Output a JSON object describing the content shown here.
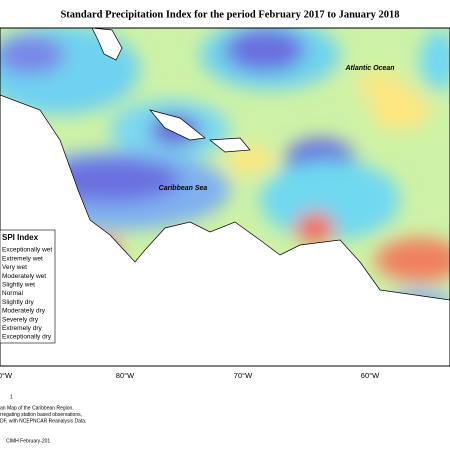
{
  "header": {
    "title": "Standard Precipitation Index for the period February 2017 to January 2018"
  },
  "map": {
    "labels": [
      "Atlantic Ocean",
      "Caribbean Sea"
    ],
    "longitudes": [
      "0°W",
      "80°W",
      "70°W",
      "60°W"
    ]
  },
  "legend": {
    "title": "SPI Index",
    "items": [
      "Exceptionally wet",
      "Extremely wet",
      "Very wet",
      "Moderately wet",
      "Slightly wet",
      "Normal",
      "Slightly dry",
      "Moderately dry",
      "Severely dry",
      "Extremely dry",
      "Exceptionally dry"
    ]
  },
  "footer": {
    "marker": "1",
    "lines": [
      "an Map of the Caribbean Region.",
      "rregating station based observations,",
      "DF, with NCEPNCAR Reanalysis Data."
    ],
    "credit": "CIMH February-201"
  }
}
